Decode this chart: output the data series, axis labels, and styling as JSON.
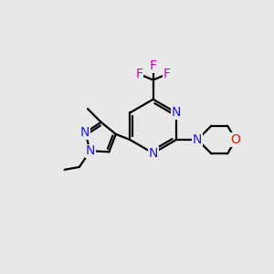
{
  "bg_color": "#e8e8e8",
  "bond_color": "#000000",
  "N_color": "#1a1aee",
  "O_color": "#cc2200",
  "F_color": "#dd00aa",
  "line_width": 1.6,
  "font_size": 10,
  "figsize": [
    3.0,
    3.0
  ],
  "dpi": 100,
  "xlim": [
    0,
    10
  ],
  "ylim": [
    0,
    10
  ]
}
